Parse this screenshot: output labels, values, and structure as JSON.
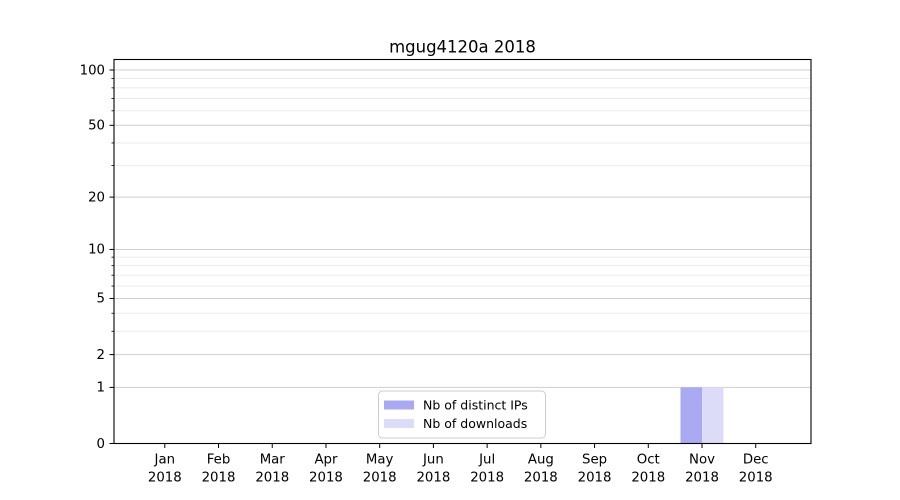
{
  "title": "mgug4120a 2018",
  "chart_data": {
    "type": "bar",
    "title": "mgug4120a 2018",
    "categories": [
      "Jan",
      "Feb",
      "Mar",
      "Apr",
      "May",
      "Jun",
      "Jul",
      "Aug",
      "Sep",
      "Oct",
      "Nov",
      "Dec"
    ],
    "category_year": "2018",
    "series": [
      {
        "name": "Nb of distinct IPs",
        "color": "#a9aaf2",
        "values": [
          0,
          0,
          0,
          0,
          0,
          0,
          0,
          0,
          0,
          0,
          1,
          0
        ]
      },
      {
        "name": "Nb of downloads",
        "color": "#dcdcf8",
        "values": [
          0,
          0,
          0,
          0,
          0,
          0,
          0,
          0,
          0,
          0,
          1,
          0
        ]
      }
    ],
    "yscale": "log1p",
    "ylim": [
      0,
      114
    ],
    "yticks_major": [
      0,
      1,
      2,
      5,
      10,
      20,
      50,
      100
    ],
    "yticks_minor": [
      3,
      4,
      6,
      7,
      8,
      9,
      30,
      40,
      60,
      70,
      80,
      90
    ],
    "grid": "horizontal",
    "legend_position": "lower-center-inside"
  },
  "colors": {
    "background": "#ffffff",
    "axis": "#000000",
    "grid_major": "#cfcfcf",
    "grid_minor": "#ebebeb",
    "legend_border": "#cccccc",
    "legend_fill": "#ffffff"
  }
}
